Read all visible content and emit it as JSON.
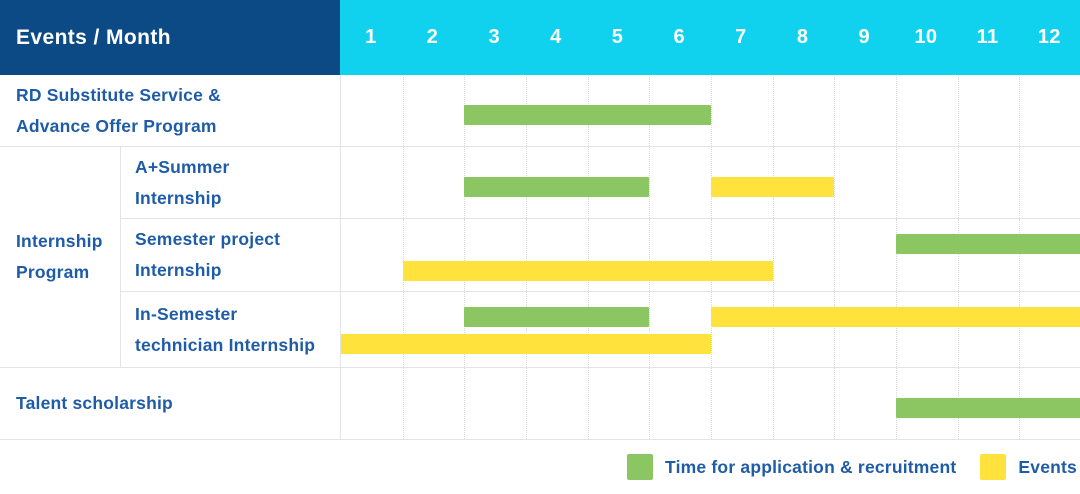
{
  "colors": {
    "header_navy": "#0C4A85",
    "header_cyan": "#10D2EF",
    "application_green": "#8CC663",
    "event_yellow": "#FFE33C",
    "text_blue": "#1E5CA8",
    "grid_line": "#E4E4E4",
    "month_gridline": "#D8D8D8"
  },
  "chart_data": {
    "type": "bar",
    "variant": "gantt-schedule",
    "title": "Events / Month",
    "x_axis": {
      "label": "Month",
      "ticks": [
        1,
        2,
        3,
        4,
        5,
        6,
        7,
        8,
        9,
        10,
        11,
        12
      ],
      "range": [
        1,
        12
      ]
    },
    "grid": true,
    "legend_position": "bottom-right",
    "group_label": "Internship\nProgram",
    "rows": [
      {
        "label": "RD Substitute Service &\nAdvance Offer Program",
        "group": null,
        "bars": [
          {
            "series": "application",
            "start_month": 3,
            "end_month": 6,
            "lane": "center"
          }
        ]
      },
      {
        "label": "A+Summer\nInternship",
        "group": "Internship Program",
        "bars": [
          {
            "series": "application",
            "start_month": 3,
            "end_month": 5,
            "lane": "center"
          },
          {
            "series": "event",
            "start_month": 7,
            "end_month": 8,
            "lane": "center"
          }
        ]
      },
      {
        "label": "Semester project\nInternship",
        "group": "Internship Program",
        "bars": [
          {
            "series": "application",
            "start_month": 10,
            "end_month": 12,
            "lane": "top"
          },
          {
            "series": "event",
            "start_month": 2,
            "end_month": 7,
            "lane": "bottom"
          }
        ]
      },
      {
        "label": "In-Semester\ntechnician Internship",
        "group": "Internship Program",
        "bars": [
          {
            "series": "application",
            "start_month": 3,
            "end_month": 5,
            "lane": "top"
          },
          {
            "series": "event",
            "start_month": 7,
            "end_month": 12,
            "lane": "top"
          },
          {
            "series": "event",
            "start_month": 1,
            "end_month": 6,
            "lane": "bottom"
          }
        ]
      },
      {
        "label": "Talent scholarship",
        "group": null,
        "bars": [
          {
            "series": "application",
            "start_month": 10,
            "end_month": 12,
            "lane": "center"
          }
        ]
      }
    ],
    "legend": [
      {
        "key": "application",
        "label": "Time for application & recruitment",
        "color": "#8CC663"
      },
      {
        "key": "event",
        "label": "Events",
        "color": "#FFE33C"
      }
    ]
  }
}
